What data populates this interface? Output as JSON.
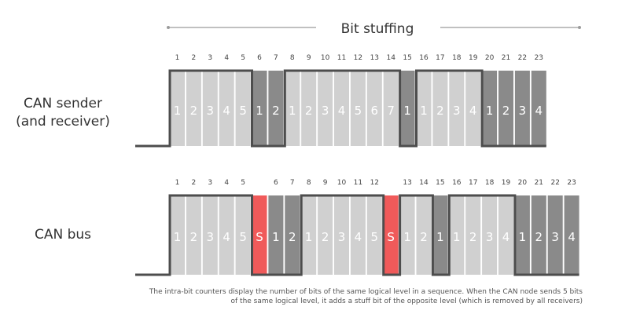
{
  "title": "Bit stuffing",
  "colors": {
    "light": "#d0d0d0",
    "dark": "#8a8a8a",
    "stuff": "#f05a5a",
    "signal": "#4d4d4d",
    "line": "#9b9b9b",
    "text": "#333333"
  },
  "rows": [
    {
      "label_lines": [
        "CAN sender",
        "(and receiver)"
      ],
      "bits": [
        {
          "level": "high",
          "count": "1",
          "index": "1"
        },
        {
          "level": "high",
          "count": "2",
          "index": "2"
        },
        {
          "level": "high",
          "count": "3",
          "index": "3"
        },
        {
          "level": "high",
          "count": "4",
          "index": "4"
        },
        {
          "level": "high",
          "count": "5",
          "index": "5"
        },
        {
          "level": "low",
          "count": "1",
          "index": "6"
        },
        {
          "level": "low",
          "count": "2",
          "index": "7"
        },
        {
          "level": "high",
          "count": "1",
          "index": "8"
        },
        {
          "level": "high",
          "count": "2",
          "index": "9"
        },
        {
          "level": "high",
          "count": "3",
          "index": "10"
        },
        {
          "level": "high",
          "count": "4",
          "index": "11"
        },
        {
          "level": "high",
          "count": "5",
          "index": "12"
        },
        {
          "level": "high",
          "count": "6",
          "index": "13"
        },
        {
          "level": "high",
          "count": "7",
          "index": "14"
        },
        {
          "level": "low",
          "count": "1",
          "index": "15"
        },
        {
          "level": "high",
          "count": "1",
          "index": "16"
        },
        {
          "level": "high",
          "count": "2",
          "index": "17"
        },
        {
          "level": "high",
          "count": "3",
          "index": "18"
        },
        {
          "level": "high",
          "count": "4",
          "index": "19"
        },
        {
          "level": "low",
          "count": "1",
          "index": "20"
        },
        {
          "level": "low",
          "count": "2",
          "index": "21"
        },
        {
          "level": "low",
          "count": "3",
          "index": "22"
        },
        {
          "level": "low",
          "count": "4",
          "index": "23"
        }
      ]
    },
    {
      "label_lines": [
        "CAN bus"
      ],
      "bits": [
        {
          "level": "high",
          "count": "1",
          "index": "1"
        },
        {
          "level": "high",
          "count": "2",
          "index": "2"
        },
        {
          "level": "high",
          "count": "3",
          "index": "3"
        },
        {
          "level": "high",
          "count": "4",
          "index": "4"
        },
        {
          "level": "high",
          "count": "5",
          "index": "5"
        },
        {
          "level": "low",
          "count": "S",
          "index": "",
          "stuff": true
        },
        {
          "level": "low",
          "count": "1",
          "index": "6"
        },
        {
          "level": "low",
          "count": "2",
          "index": "7"
        },
        {
          "level": "high",
          "count": "1",
          "index": "8"
        },
        {
          "level": "high",
          "count": "2",
          "index": "9"
        },
        {
          "level": "high",
          "count": "3",
          "index": "10"
        },
        {
          "level": "high",
          "count": "4",
          "index": "11"
        },
        {
          "level": "high",
          "count": "5",
          "index": "12"
        },
        {
          "level": "low",
          "count": "S",
          "index": "",
          "stuff": true
        },
        {
          "level": "high",
          "count": "1",
          "index": "13"
        },
        {
          "level": "high",
          "count": "2",
          "index": "14"
        },
        {
          "level": "low",
          "count": "1",
          "index": "15"
        },
        {
          "level": "high",
          "count": "1",
          "index": "16"
        },
        {
          "level": "high",
          "count": "2",
          "index": "17"
        },
        {
          "level": "high",
          "count": "3",
          "index": "18"
        },
        {
          "level": "high",
          "count": "4",
          "index": "19"
        },
        {
          "level": "low",
          "count": "1",
          "index": "20"
        },
        {
          "level": "low",
          "count": "2",
          "index": "21"
        },
        {
          "level": "low",
          "count": "3",
          "index": "22"
        },
        {
          "level": "low",
          "count": "4",
          "index": "23"
        }
      ]
    }
  ],
  "caption_lines": [
    "The intra-bit counters display the number of bits of the same logical level in a sequence. When the CAN node sends 5 bits",
    "of the same logical level, it adds a stuff bit of the opposite level (which is removed by all receivers)"
  ]
}
